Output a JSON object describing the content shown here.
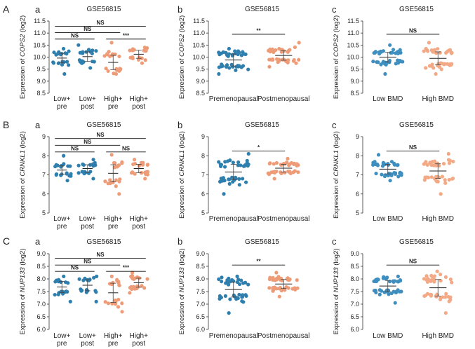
{
  "colors": {
    "blue": "#2f7fae",
    "orange": "#ee9c77",
    "light_blue": "#3e8fc0",
    "light_orange": "#f3a985"
  },
  "chart_data": [
    {
      "type": "scatter",
      "panel": "A",
      "subpanel": "a",
      "title": "GSE56815",
      "ylabel_prefix": "Expression of ",
      "gene": "COPS2",
      "ylabel_suffix": " (log2)",
      "ylim": [
        8.5,
        11.5
      ],
      "yticks": [
        8.5,
        9.0,
        9.5,
        10.0,
        10.5,
        11.0,
        11.5
      ],
      "tick_labels": [
        "8.5",
        "9.0",
        "9.5",
        "10.0",
        "10.5",
        "11.0",
        "11.5"
      ],
      "categories": [
        {
          "line1": "Low+",
          "line2": "pre"
        },
        {
          "line1": "Low+",
          "line2": "post"
        },
        {
          "line1": "High+",
          "line2": "pre"
        },
        {
          "line1": "High+",
          "line2": "post"
        }
      ],
      "groups": [
        {
          "color": "blue",
          "mean": 9.96,
          "sd": 0.2,
          "n": 20,
          "min": 9.3,
          "max": 10.35
        },
        {
          "color": "blue",
          "mean": 10.02,
          "sd": 0.2,
          "n": 20,
          "min": 9.55,
          "max": 10.5
        },
        {
          "color": "orange",
          "mean": 9.78,
          "sd": 0.3,
          "n": 20,
          "min": 9.3,
          "max": 10.6
        },
        {
          "color": "orange",
          "mean": 10.12,
          "sd": 0.17,
          "n": 20,
          "min": 9.75,
          "max": 10.4
        }
      ],
      "comparisons": [
        {
          "from": 0,
          "to": 1,
          "y": 10.75,
          "label": "NS"
        },
        {
          "from": 0,
          "to": 2,
          "y": 11.02,
          "label": "NS"
        },
        {
          "from": 0,
          "to": 3,
          "y": 11.28,
          "label": "NS"
        },
        {
          "from": 2,
          "to": 3,
          "y": 10.75,
          "label": "***"
        }
      ]
    },
    {
      "type": "scatter",
      "panel": "",
      "subpanel": "b",
      "title": "GSE56815",
      "ylabel_prefix": "Expression of ",
      "gene": "COPS2",
      "ylabel_suffix": " (log2)",
      "ylim": [
        8.5,
        11.5
      ],
      "yticks": [
        8.5,
        9.0,
        9.5,
        10.0,
        10.5,
        11.0,
        11.5
      ],
      "tick_labels": [
        "8.5",
        "9.0",
        "9.5",
        "10.0",
        "10.5",
        "11.0",
        "11.5"
      ],
      "categories": [
        {
          "line1": "Premenopausal",
          "line2": ""
        },
        {
          "line1": "Postmenopausal",
          "line2": ""
        }
      ],
      "groups": [
        {
          "color": "blue",
          "mean": 9.88,
          "sd": 0.25,
          "n": 40,
          "min": 9.3,
          "max": 10.35
        },
        {
          "color": "orange",
          "mean": 10.07,
          "sd": 0.2,
          "n": 40,
          "min": 9.6,
          "max": 10.6
        }
      ],
      "comparisons": [
        {
          "from": 0,
          "to": 1,
          "y": 10.95,
          "label": "**"
        }
      ]
    },
    {
      "type": "scatter",
      "panel": "",
      "subpanel": "c",
      "title": "GSE56815",
      "ylabel_prefix": "Expression of ",
      "gene": "COPS2",
      "ylabel_suffix": " (log2)",
      "ylim": [
        8.5,
        11.5
      ],
      "yticks": [
        8.5,
        9.0,
        9.5,
        10.0,
        10.5,
        11.0,
        11.5
      ],
      "tick_labels": [
        "8.5",
        "9.0",
        "9.5",
        "10.0",
        "10.5",
        "11.0",
        "11.5"
      ],
      "categories": [
        {
          "line1": "Low BMD",
          "line2": ""
        },
        {
          "line1": "High BMD",
          "line2": ""
        }
      ],
      "groups": [
        {
          "color": "light_blue",
          "mean": 10.0,
          "sd": 0.2,
          "n": 40,
          "min": 9.3,
          "max": 10.5
        },
        {
          "color": "light_orange",
          "mean": 9.95,
          "sd": 0.27,
          "n": 40,
          "min": 9.3,
          "max": 10.6
        }
      ],
      "comparisons": [
        {
          "from": 0,
          "to": 1,
          "y": 10.95,
          "label": "NS"
        }
      ]
    },
    {
      "type": "scatter",
      "panel": "B",
      "subpanel": "a",
      "title": "GSE56815",
      "ylabel_prefix": "Expression of ",
      "gene": "CRNKL1",
      "ylabel_suffix": " (log2)",
      "ylim": [
        5,
        9
      ],
      "yticks": [
        5,
        6,
        7,
        8,
        9
      ],
      "tick_labels": [
        "5",
        "6",
        "7",
        "8",
        "9"
      ],
      "categories": [
        {
          "line1": "Low+",
          "line2": "pre"
        },
        {
          "line1": "Low+",
          "line2": "post"
        },
        {
          "line1": "High+",
          "line2": "pre"
        },
        {
          "line1": "High+",
          "line2": "post"
        }
      ],
      "groups": [
        {
          "color": "blue",
          "mean": 7.25,
          "sd": 0.22,
          "n": 20,
          "min": 6.7,
          "max": 8.0
        },
        {
          "color": "blue",
          "mean": 7.33,
          "sd": 0.2,
          "n": 18,
          "min": 6.8,
          "max": 7.8
        },
        {
          "color": "orange",
          "mean": 7.08,
          "sd": 0.45,
          "n": 20,
          "min": 6.0,
          "max": 8.05
        },
        {
          "color": "orange",
          "mean": 7.33,
          "sd": 0.22,
          "n": 22,
          "min": 6.8,
          "max": 7.8
        }
      ],
      "comparisons": [
        {
          "from": 0,
          "to": 1,
          "y": 8.2,
          "label": "NS"
        },
        {
          "from": 0,
          "to": 2,
          "y": 8.55,
          "label": "NS"
        },
        {
          "from": 0,
          "to": 3,
          "y": 8.9,
          "label": "NS"
        },
        {
          "from": 2,
          "to": 3,
          "y": 8.2,
          "label": "NS"
        }
      ]
    },
    {
      "type": "scatter",
      "panel": "",
      "subpanel": "b",
      "title": "GSE56815",
      "ylabel_prefix": "Expression of ",
      "gene": "CRNKL1",
      "ylabel_suffix": " (log2)",
      "ylim": [
        5,
        9
      ],
      "yticks": [
        5,
        6,
        7,
        8,
        9
      ],
      "tick_labels": [
        "5",
        "6",
        "7",
        "8",
        "9"
      ],
      "categories": [
        {
          "line1": "Premenopausal",
          "line2": ""
        },
        {
          "line1": "Postmenopausal",
          "line2": ""
        }
      ],
      "groups": [
        {
          "color": "blue",
          "mean": 7.15,
          "sd": 0.4,
          "n": 40,
          "min": 6.0,
          "max": 8.1
        },
        {
          "color": "orange",
          "mean": 7.35,
          "sd": 0.2,
          "n": 40,
          "min": 6.8,
          "max": 7.85
        }
      ],
      "comparisons": [
        {
          "from": 0,
          "to": 1,
          "y": 8.25,
          "label": "*"
        }
      ]
    },
    {
      "type": "scatter",
      "panel": "",
      "subpanel": "c",
      "title": "GSE56815",
      "ylabel_prefix": "Expression of ",
      "gene": "CRNKL1",
      "ylabel_suffix": " (log2)",
      "ylim": [
        5,
        9
      ],
      "yticks": [
        5,
        6,
        7,
        8,
        9
      ],
      "tick_labels": [
        "5",
        "6",
        "7",
        "8",
        "9"
      ],
      "categories": [
        {
          "line1": "Low BMD",
          "line2": ""
        },
        {
          "line1": "High BMD",
          "line2": ""
        }
      ],
      "groups": [
        {
          "color": "light_blue",
          "mean": 7.3,
          "sd": 0.25,
          "n": 40,
          "min": 6.7,
          "max": 8.05
        },
        {
          "color": "light_orange",
          "mean": 7.2,
          "sd": 0.38,
          "n": 40,
          "min": 6.0,
          "max": 8.1
        }
      ],
      "comparisons": [
        {
          "from": 0,
          "to": 1,
          "y": 8.25,
          "label": "NS"
        }
      ]
    },
    {
      "type": "scatter",
      "panel": "C",
      "subpanel": "a",
      "title": "GSE56815",
      "ylabel_prefix": "Expression of ",
      "gene": "NUP133",
      "ylabel_suffix": " (log2)",
      "ylim": [
        6.0,
        9.0
      ],
      "yticks": [
        6.0,
        6.5,
        7.0,
        7.5,
        8.0,
        8.5,
        9.0
      ],
      "tick_labels": [
        "6.0",
        "6.5",
        "7.0",
        "7.5",
        "8.0",
        "8.5",
        "9.0"
      ],
      "categories": [
        {
          "line1": "Low+",
          "line2": "pre"
        },
        {
          "line1": "Low+",
          "line2": "post"
        },
        {
          "line1": "High+",
          "line2": "pre"
        },
        {
          "line1": "High+",
          "line2": "post"
        }
      ],
      "groups": [
        {
          "color": "blue",
          "mean": 7.68,
          "sd": 0.22,
          "n": 20,
          "min": 7.1,
          "max": 8.1
        },
        {
          "color": "blue",
          "mean": 7.75,
          "sd": 0.22,
          "n": 18,
          "min": 7.1,
          "max": 8.1
        },
        {
          "color": "orange",
          "mean": 7.45,
          "sd": 0.38,
          "n": 20,
          "min": 6.7,
          "max": 8.1
        },
        {
          "color": "orange",
          "mean": 7.85,
          "sd": 0.18,
          "n": 22,
          "min": 7.45,
          "max": 8.25
        }
      ],
      "comparisons": [
        {
          "from": 0,
          "to": 1,
          "y": 8.3,
          "label": "NS"
        },
        {
          "from": 0,
          "to": 2,
          "y": 8.55,
          "label": "NS"
        },
        {
          "from": 0,
          "to": 3,
          "y": 8.82,
          "label": "NS"
        },
        {
          "from": 2,
          "to": 3,
          "y": 8.3,
          "label": "***"
        }
      ]
    },
    {
      "type": "scatter",
      "panel": "",
      "subpanel": "b",
      "title": "GSE56815",
      "ylabel_prefix": "Expression of ",
      "gene": "NUP133",
      "ylabel_suffix": " (log2)",
      "ylim": [
        6.0,
        9.0
      ],
      "yticks": [
        6.0,
        6.5,
        7.0,
        7.5,
        8.0,
        8.5,
        9.0
      ],
      "tick_labels": [
        "6.0",
        "6.5",
        "7.0",
        "7.5",
        "8.0",
        "8.5",
        "9.0"
      ],
      "categories": [
        {
          "line1": "Premenopausal",
          "line2": ""
        },
        {
          "line1": "Postmenopausal",
          "line2": ""
        }
      ],
      "groups": [
        {
          "color": "blue",
          "mean": 7.58,
          "sd": 0.3,
          "n": 40,
          "min": 6.65,
          "max": 8.1
        },
        {
          "color": "orange",
          "mean": 7.8,
          "sd": 0.18,
          "n": 40,
          "min": 7.3,
          "max": 8.25
        }
      ],
      "comparisons": [
        {
          "from": 0,
          "to": 1,
          "y": 8.55,
          "label": "**"
        }
      ]
    },
    {
      "type": "scatter",
      "panel": "",
      "subpanel": "c",
      "title": "GSE56815",
      "ylabel_prefix": "Expression of ",
      "gene": "NUP133",
      "ylabel_suffix": " (log2)",
      "ylim": [
        6.0,
        9.0
      ],
      "yticks": [
        6.0,
        6.5,
        7.0,
        7.5,
        8.0,
        8.5,
        9.0
      ],
      "tick_labels": [
        "6.0",
        "6.5",
        "7.0",
        "7.5",
        "8.0",
        "8.5",
        "9.0"
      ],
      "categories": [
        {
          "line1": "Low BMD",
          "line2": ""
        },
        {
          "line1": "High BMD",
          "line2": ""
        }
      ],
      "groups": [
        {
          "color": "light_blue",
          "mean": 7.72,
          "sd": 0.22,
          "n": 40,
          "min": 7.05,
          "max": 8.1
        },
        {
          "color": "light_orange",
          "mean": 7.65,
          "sd": 0.33,
          "n": 40,
          "min": 6.65,
          "max": 8.3
        }
      ],
      "comparisons": [
        {
          "from": 0,
          "to": 1,
          "y": 8.55,
          "label": "NS"
        }
      ]
    }
  ]
}
